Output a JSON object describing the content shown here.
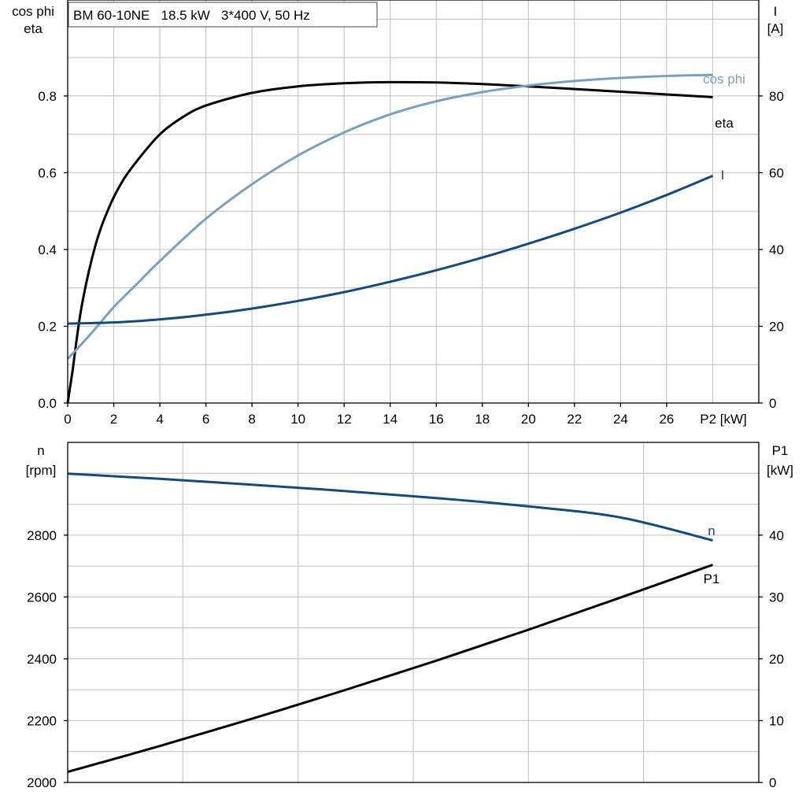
{
  "chart_data": [
    {
      "type": "line",
      "title": "BM 60-10NE   18.5 kW   3*400 V, 50 Hz",
      "xlabel": "P2 [kW]",
      "ylabel_left": [
        "cos phi",
        "eta"
      ],
      "ylabel_right": [
        "I",
        "[A]"
      ],
      "xlim": [
        0,
        30
      ],
      "ylim_left": [
        0,
        1.05
      ],
      "ylim_right": [
        0,
        105
      ],
      "x_ticks": [
        "0",
        "2",
        "4",
        "6",
        "8",
        "10",
        "12",
        "14",
        "16",
        "18",
        "20",
        "22",
        "24",
        "26"
      ],
      "y_ticks_left": [
        "0.0",
        "0.2",
        "0.4",
        "0.6",
        "0.8"
      ],
      "y_ticks_right": [
        "0",
        "20",
        "40",
        "60",
        "80"
      ],
      "grid": true,
      "series": [
        {
          "name": "eta",
          "axis": "left",
          "color": "#000000",
          "points": [
            [
              0,
              0
            ],
            [
              0.2,
              0.08
            ],
            [
              0.6,
              0.25
            ],
            [
              1.2,
              0.41
            ],
            [
              1.8,
              0.51
            ],
            [
              2.4,
              0.58
            ],
            [
              3.0,
              0.63
            ],
            [
              4.0,
              0.7
            ],
            [
              5.0,
              0.745
            ],
            [
              6.0,
              0.775
            ],
            [
              8.0,
              0.808
            ],
            [
              10.0,
              0.825
            ],
            [
              12.0,
              0.833
            ],
            [
              14.0,
              0.836
            ],
            [
              16.0,
              0.835
            ],
            [
              18.0,
              0.831
            ],
            [
              20.0,
              0.825
            ],
            [
              22.0,
              0.818
            ],
            [
              24.0,
              0.811
            ],
            [
              26.0,
              0.804
            ],
            [
              28.0,
              0.797
            ]
          ]
        },
        {
          "name": "cos phi",
          "axis": "left",
          "color": "#7aa0c0",
          "points": [
            [
              0,
              0.115
            ],
            [
              1,
              0.18
            ],
            [
              2,
              0.25
            ],
            [
              3,
              0.31
            ],
            [
              4,
              0.37
            ],
            [
              6,
              0.48
            ],
            [
              8,
              0.57
            ],
            [
              10,
              0.645
            ],
            [
              12,
              0.705
            ],
            [
              14,
              0.752
            ],
            [
              16,
              0.786
            ],
            [
              18,
              0.81
            ],
            [
              20,
              0.827
            ],
            [
              22,
              0.839
            ],
            [
              24,
              0.847
            ],
            [
              26,
              0.852
            ],
            [
              28,
              0.855
            ]
          ]
        },
        {
          "name": "I",
          "axis": "right",
          "color": "#144a7c",
          "points": [
            [
              0,
              20.7
            ],
            [
              2,
              21.0
            ],
            [
              4,
              21.8
            ],
            [
              6,
              23.0
            ],
            [
              8,
              24.6
            ],
            [
              10,
              26.6
            ],
            [
              12,
              28.9
            ],
            [
              14,
              31.6
            ],
            [
              16,
              34.6
            ],
            [
              18,
              37.9
            ],
            [
              20,
              41.5
            ],
            [
              22,
              45.4
            ],
            [
              24,
              49.6
            ],
            [
              26,
              54.2
            ],
            [
              28,
              59.2
            ]
          ]
        }
      ]
    },
    {
      "type": "line",
      "ylabel_left": [
        "n",
        "[rpm]"
      ],
      "ylabel_right": [
        "P1",
        "[kW]"
      ],
      "xlim": [
        0,
        30
      ],
      "ylim_left": [
        2000,
        3100
      ],
      "ylim_right": [
        0,
        55
      ],
      "y_ticks_left": [
        "2000",
        "2200",
        "2400",
        "2600",
        "2800"
      ],
      "y_ticks_right": [
        "0",
        "10",
        "20",
        "30",
        "40"
      ],
      "grid": true,
      "series": [
        {
          "name": "n",
          "axis": "left",
          "color": "#144a7c",
          "points": [
            [
              0,
              2999
            ],
            [
              4,
              2982
            ],
            [
              8,
              2963
            ],
            [
              12,
              2943
            ],
            [
              16,
              2920
            ],
            [
              20,
              2893
            ],
            [
              24,
              2857
            ],
            [
              28,
              2783
            ]
          ]
        },
        {
          "name": "P1",
          "axis": "right",
          "color": "#000000",
          "points": [
            [
              0,
              1.7
            ],
            [
              4,
              5.9
            ],
            [
              8,
              10.3
            ],
            [
              12,
              14.9
            ],
            [
              16,
              19.7
            ],
            [
              20,
              24.7
            ],
            [
              24,
              29.9
            ],
            [
              28,
              35.2
            ]
          ]
        }
      ]
    }
  ]
}
